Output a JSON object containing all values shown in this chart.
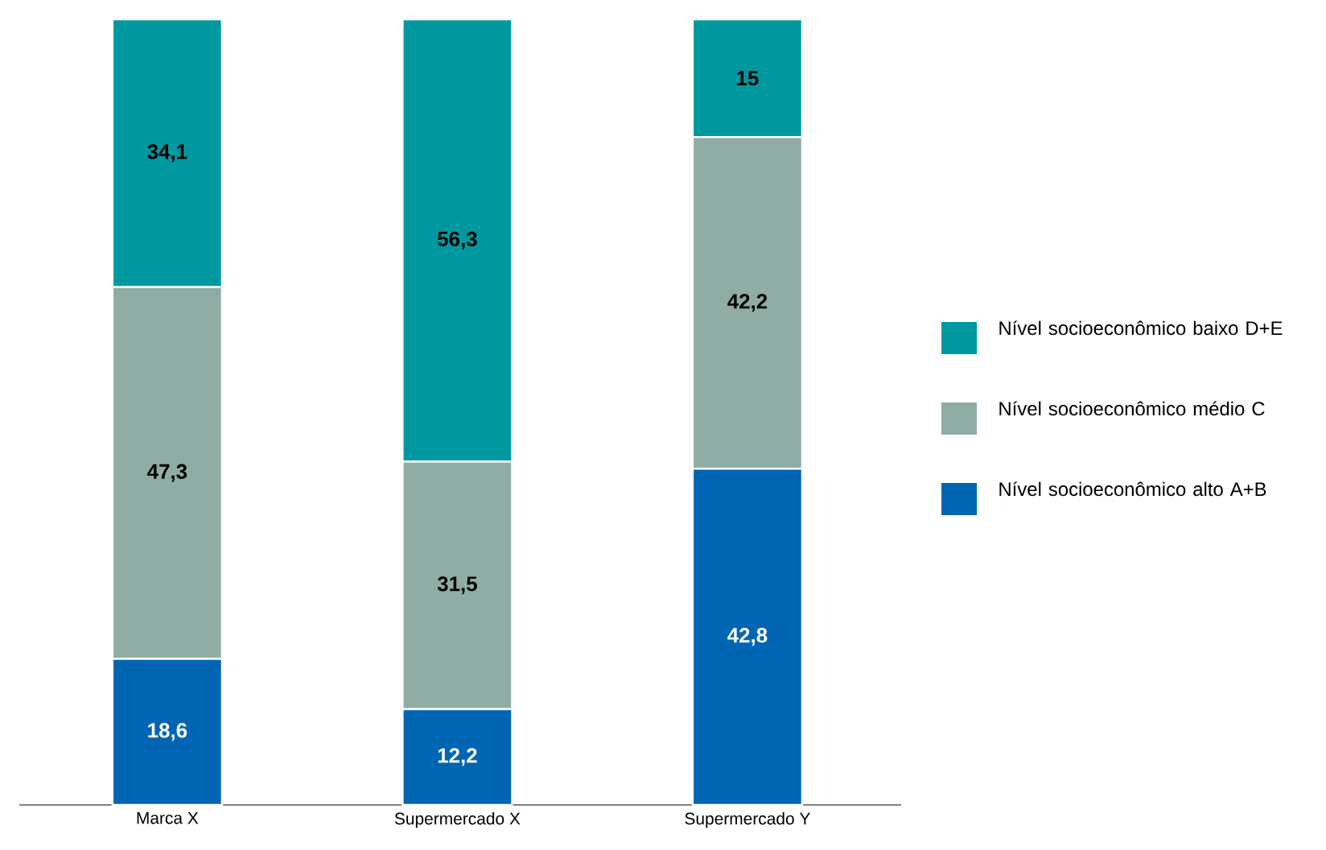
{
  "chart_data": {
    "type": "bar",
    "stacked": true,
    "categories": [
      "Marca X",
      "Supermercado X",
      "Supermercado Y"
    ],
    "series": [
      {
        "name": "Nível socioeconômico alto A+B",
        "color": "#0066b3",
        "values": [
          18.6,
          12.2,
          42.8
        ],
        "value_labels": [
          "18,6",
          "12,2",
          "42,8"
        ]
      },
      {
        "name": "Nível socioeconômico médio C",
        "color": "#8fada5",
        "values": [
          47.3,
          31.5,
          42.2
        ],
        "value_labels": [
          "47,3",
          "31,5",
          "42,2"
        ]
      },
      {
        "name": "Nível socioeconômico baixo D+E",
        "color": "#00999f",
        "values": [
          34.1,
          56.3,
          15
        ],
        "value_labels": [
          "34,1",
          "56,3",
          "15"
        ]
      }
    ],
    "legend": "right"
  }
}
